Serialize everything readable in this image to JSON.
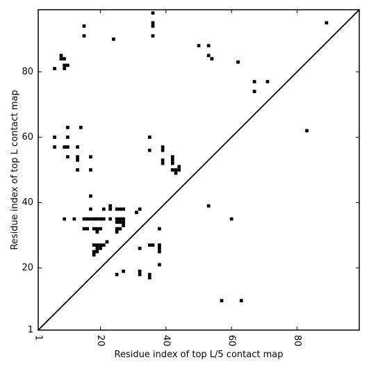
{
  "chart_data": {
    "type": "scatter",
    "marker": "square",
    "xlabel": "Residue index of top L/5 contact map",
    "ylabel": "Residue index of top L contact map",
    "xlim": [
      1,
      99
    ],
    "ylim": [
      1,
      99
    ],
    "xticks": [
      1,
      20,
      40,
      60,
      80
    ],
    "yticks": [
      1,
      20,
      40,
      60,
      80
    ],
    "diagonal": true,
    "grid": false,
    "colors": {
      "points": "#000000",
      "diagonal": "#000000",
      "frame": "#000000"
    },
    "points": [
      [
        36,
        98
      ],
      [
        15,
        94
      ],
      [
        36,
        95
      ],
      [
        36,
        94
      ],
      [
        15,
        91
      ],
      [
        36,
        91
      ],
      [
        24,
        90
      ],
      [
        89,
        95
      ],
      [
        50,
        88
      ],
      [
        53,
        88
      ],
      [
        53,
        85
      ],
      [
        54,
        84
      ],
      [
        8,
        85
      ],
      [
        8,
        84
      ],
      [
        9,
        84
      ],
      [
        10,
        82
      ],
      [
        9,
        82
      ],
      [
        9,
        81
      ],
      [
        6,
        81
      ],
      [
        62,
        83
      ],
      [
        67,
        77
      ],
      [
        71,
        77
      ],
      [
        67,
        74
      ],
      [
        10,
        63
      ],
      [
        14,
        63
      ],
      [
        83,
        62
      ],
      [
        6,
        60
      ],
      [
        10,
        60
      ],
      [
        35,
        60
      ],
      [
        6,
        57
      ],
      [
        9,
        57
      ],
      [
        10,
        57
      ],
      [
        13,
        57
      ],
      [
        39,
        57
      ],
      [
        39,
        56
      ],
      [
        35,
        56
      ],
      [
        10,
        54
      ],
      [
        17,
        54
      ],
      [
        13,
        54
      ],
      [
        13,
        53
      ],
      [
        39,
        53
      ],
      [
        39,
        52
      ],
      [
        42,
        54
      ],
      [
        42,
        53
      ],
      [
        42,
        52
      ],
      [
        44,
        51
      ],
      [
        42,
        50
      ],
      [
        43,
        50
      ],
      [
        44,
        50
      ],
      [
        43,
        49
      ],
      [
        13,
        50
      ],
      [
        17,
        50
      ],
      [
        17,
        42
      ],
      [
        53,
        39
      ],
      [
        23,
        39
      ],
      [
        23,
        38
      ],
      [
        17,
        38
      ],
      [
        21,
        38
      ],
      [
        25,
        38
      ],
      [
        26,
        38
      ],
      [
        27,
        38
      ],
      [
        32,
        38
      ],
      [
        31,
        37
      ],
      [
        9,
        35
      ],
      [
        12,
        35
      ],
      [
        15,
        35
      ],
      [
        16,
        35
      ],
      [
        17,
        35
      ],
      [
        18,
        35
      ],
      [
        19,
        35
      ],
      [
        20,
        35
      ],
      [
        21,
        35
      ],
      [
        23,
        35
      ],
      [
        25,
        35
      ],
      [
        26,
        35
      ],
      [
        27,
        35
      ],
      [
        25,
        34
      ],
      [
        26,
        34
      ],
      [
        27,
        34
      ],
      [
        27,
        33
      ],
      [
        60,
        35
      ],
      [
        15,
        32
      ],
      [
        16,
        32
      ],
      [
        18,
        32
      ],
      [
        19,
        32
      ],
      [
        20,
        32
      ],
      [
        25,
        32
      ],
      [
        26,
        32
      ],
      [
        25,
        31
      ],
      [
        19,
        31
      ],
      [
        38,
        32
      ],
      [
        22,
        28
      ],
      [
        18,
        27
      ],
      [
        19,
        27
      ],
      [
        20,
        27
      ],
      [
        21,
        27
      ],
      [
        19,
        26
      ],
      [
        20,
        26
      ],
      [
        32,
        26
      ],
      [
        18,
        25
      ],
      [
        19,
        25
      ],
      [
        18,
        24
      ],
      [
        35,
        27
      ],
      [
        36,
        27
      ],
      [
        38,
        27
      ],
      [
        38,
        26
      ],
      [
        38,
        25
      ],
      [
        38,
        21
      ],
      [
        27,
        19
      ],
      [
        32,
        19
      ],
      [
        32,
        18
      ],
      [
        25,
        18
      ],
      [
        35,
        18
      ],
      [
        35,
        17
      ],
      [
        57,
        10
      ],
      [
        63,
        10
      ]
    ]
  }
}
